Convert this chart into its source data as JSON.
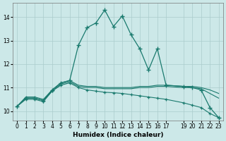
{
  "background_color": "#cce8e8",
  "grid_color": "#aacccc",
  "line_color": "#1a7a6e",
  "xlabel": "Humidex (Indice chaleur)",
  "xlim": [
    -0.5,
    23.5
  ],
  "ylim": [
    9.6,
    14.6
  ],
  "yticks": [
    10,
    11,
    12,
    13,
    14
  ],
  "xticks": [
    0,
    1,
    2,
    3,
    4,
    5,
    6,
    7,
    8,
    9,
    10,
    11,
    12,
    13,
    14,
    15,
    16,
    17,
    19,
    20,
    21,
    22,
    23
  ],
  "series_upper_x": [
    0,
    1,
    2,
    3,
    4,
    5,
    6,
    7,
    8,
    9,
    10,
    11,
    12,
    13,
    14,
    15,
    16,
    17,
    19,
    20,
    21,
    22,
    23
  ],
  "series_upper_y": [
    10.2,
    10.6,
    10.6,
    10.5,
    10.9,
    11.2,
    11.3,
    11.1,
    11.05,
    11.05,
    11.0,
    11.0,
    11.0,
    11.0,
    11.05,
    11.05,
    11.1,
    11.1,
    11.05,
    11.05,
    11.0,
    10.9,
    10.75
  ],
  "series_mid_x": [
    0,
    1,
    2,
    3,
    4,
    5,
    6,
    7,
    8,
    9,
    10,
    11,
    12,
    13,
    14,
    15,
    16,
    17,
    19,
    20,
    21,
    22,
    23
  ],
  "series_mid_y": [
    10.2,
    10.55,
    10.55,
    10.45,
    10.85,
    11.15,
    11.25,
    11.05,
    11.0,
    11.0,
    10.95,
    10.95,
    10.95,
    10.95,
    11.0,
    11.0,
    11.05,
    11.05,
    11.0,
    11.0,
    10.95,
    10.75,
    10.55
  ],
  "series_lower_x": [
    0,
    1,
    2,
    3,
    4,
    5,
    6,
    7,
    8,
    9,
    10,
    11,
    12,
    13,
    14,
    15,
    16,
    17,
    19,
    20,
    21,
    22,
    23
  ],
  "series_lower_y": [
    10.2,
    10.5,
    10.5,
    10.4,
    10.85,
    11.1,
    11.2,
    11.0,
    10.9,
    10.85,
    10.8,
    10.78,
    10.75,
    10.7,
    10.65,
    10.6,
    10.55,
    10.5,
    10.35,
    10.25,
    10.15,
    9.9,
    9.72
  ],
  "main_x": [
    0,
    1,
    2,
    3,
    4,
    5,
    6,
    7,
    8,
    9,
    10,
    11,
    12,
    13,
    14,
    15,
    16,
    17,
    19,
    20,
    21,
    22,
    23
  ],
  "main_y": [
    10.2,
    10.55,
    10.55,
    10.45,
    10.9,
    11.2,
    11.3,
    12.8,
    13.55,
    13.75,
    14.3,
    13.6,
    14.05,
    13.25,
    12.65,
    11.75,
    12.65,
    11.1,
    11.05,
    11.0,
    10.9,
    10.15,
    9.72
  ]
}
